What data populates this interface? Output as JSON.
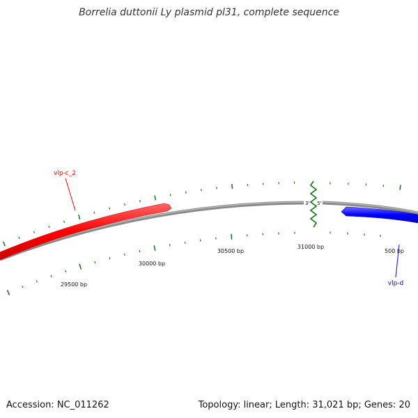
{
  "header": {
    "title": "Borrelia duttonii Ly plasmid pl31, complete sequence"
  },
  "footer": {
    "accession": "Accession: NC_011262",
    "topology": "Topology: linear; Length: 31,021 bp; Genes: 20"
  },
  "map": {
    "sequence_length_bp": 31021,
    "end_labels": {
      "three_prime": "3'",
      "five_prime": "5'"
    },
    "scale_labels": [
      "29500 bp",
      "30000 bp",
      "30500 bp",
      "31000 bp",
      "500 bp"
    ],
    "genes": [
      {
        "name": "vlp-c_2",
        "strand": "forward",
        "color": "#ff0000"
      },
      {
        "name": "vlp-d",
        "strand": "reverse",
        "color": "#0000ff"
      }
    ]
  },
  "colors": {
    "backbone": "#8a8a8a",
    "ticks": "#0a7a0a",
    "gene_forward": "#ff0000",
    "gene_reverse": "#0000ff"
  }
}
